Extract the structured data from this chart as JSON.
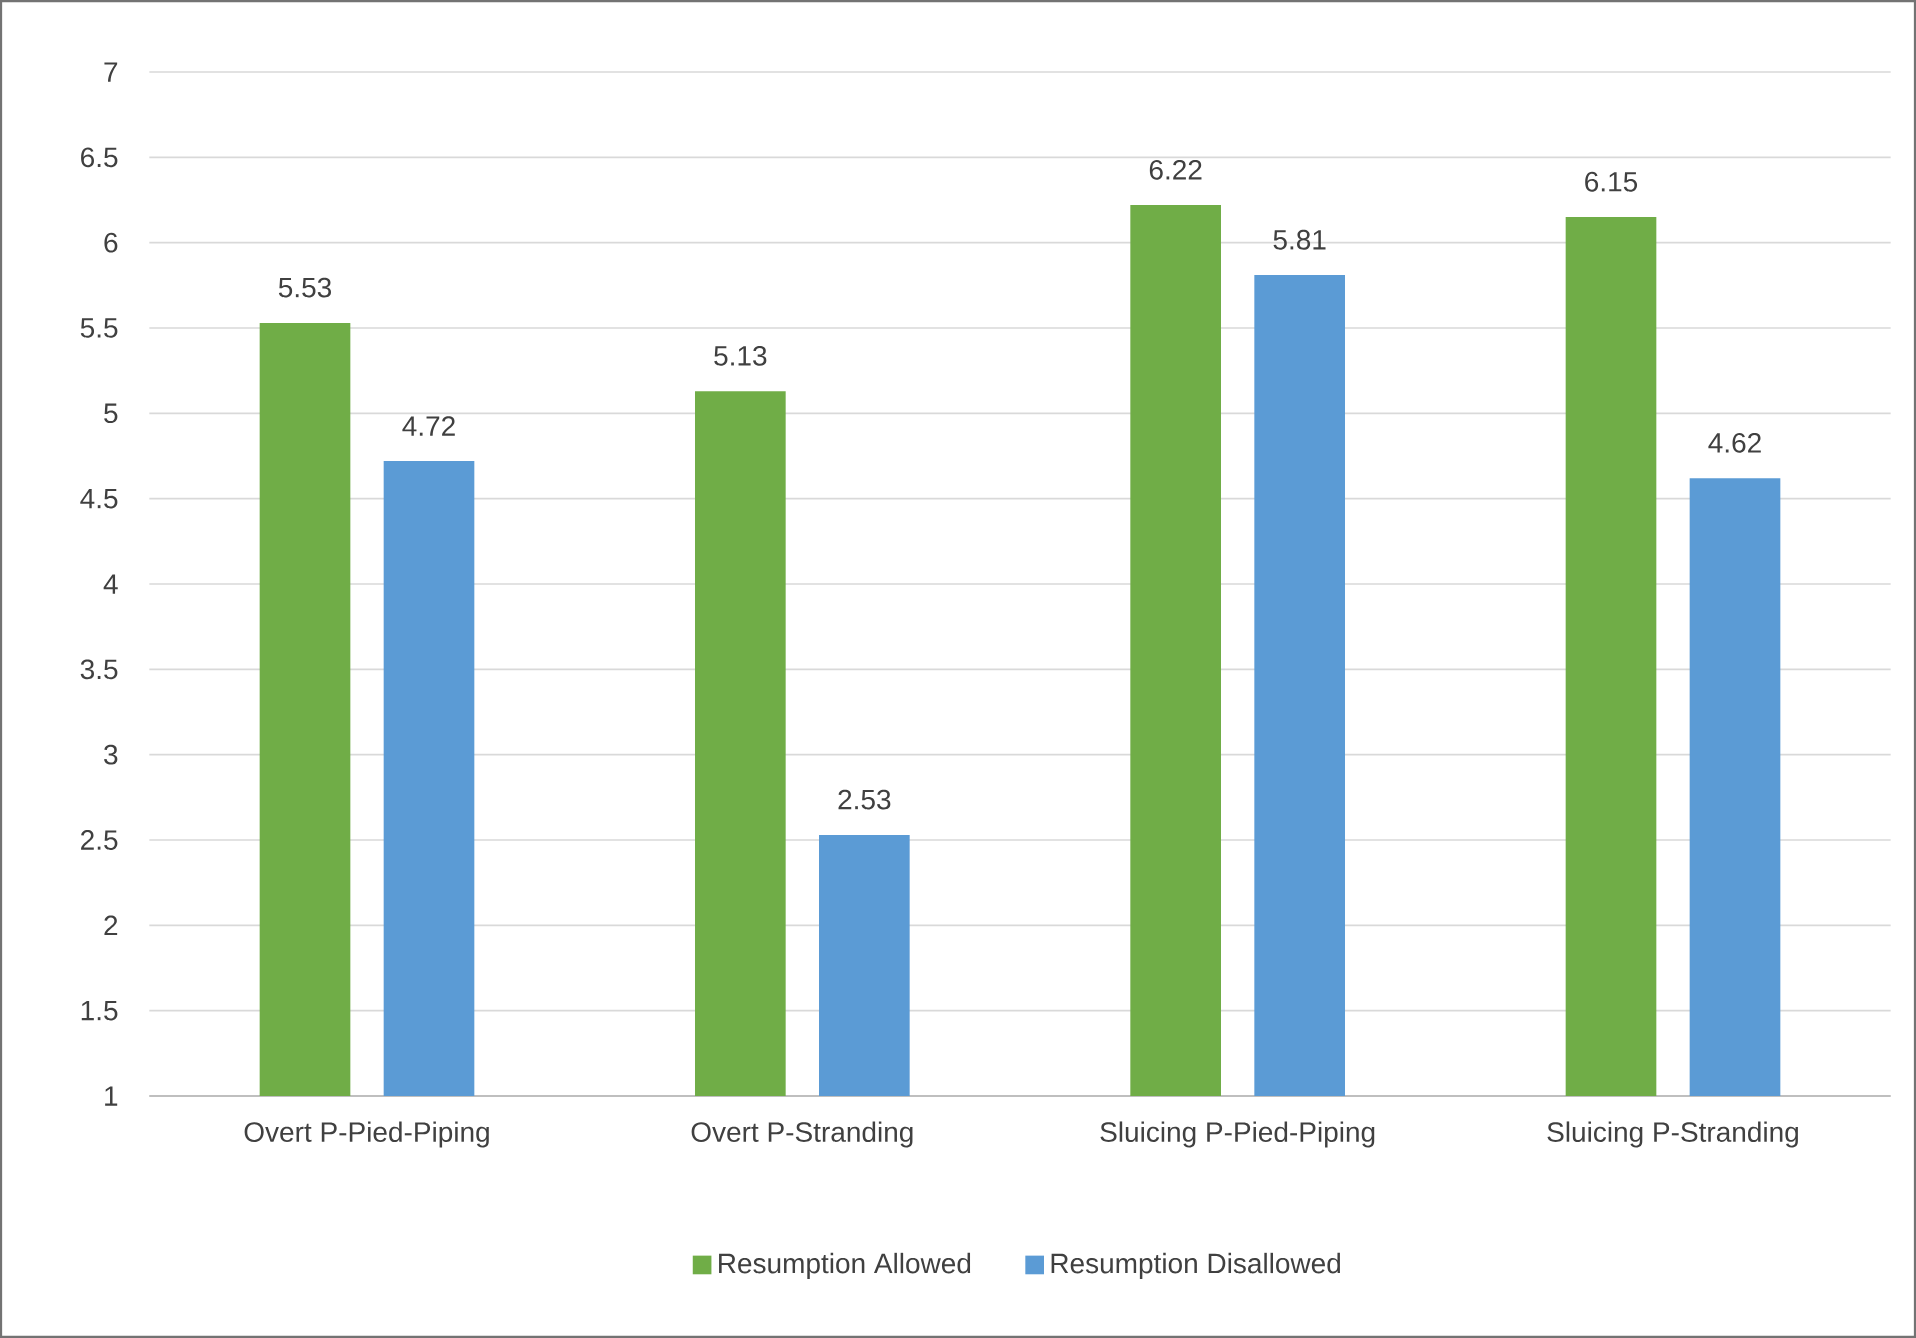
{
  "chart_data": {
    "type": "bar",
    "categories": [
      "Overt P-Pied-Piping",
      "Overt P-Stranding",
      "Sluicing P-Pied-Piping",
      "Sluicing P-Stranding"
    ],
    "series": [
      {
        "name": "Resumption Allowed",
        "color": "#70ad47",
        "values": [
          5.53,
          5.13,
          6.22,
          6.15
        ]
      },
      {
        "name": "Resumption Disallowed",
        "color": "#5b9bd5",
        "values": [
          4.72,
          2.53,
          5.81,
          4.62
        ]
      }
    ],
    "ylim": [
      1,
      7
    ],
    "yticks": [
      1,
      1.5,
      2,
      2.5,
      3,
      3.5,
      4,
      4.5,
      5,
      5.5,
      6,
      6.5,
      7
    ],
    "grid": "y",
    "legend": "bottom",
    "data_labels": true
  }
}
